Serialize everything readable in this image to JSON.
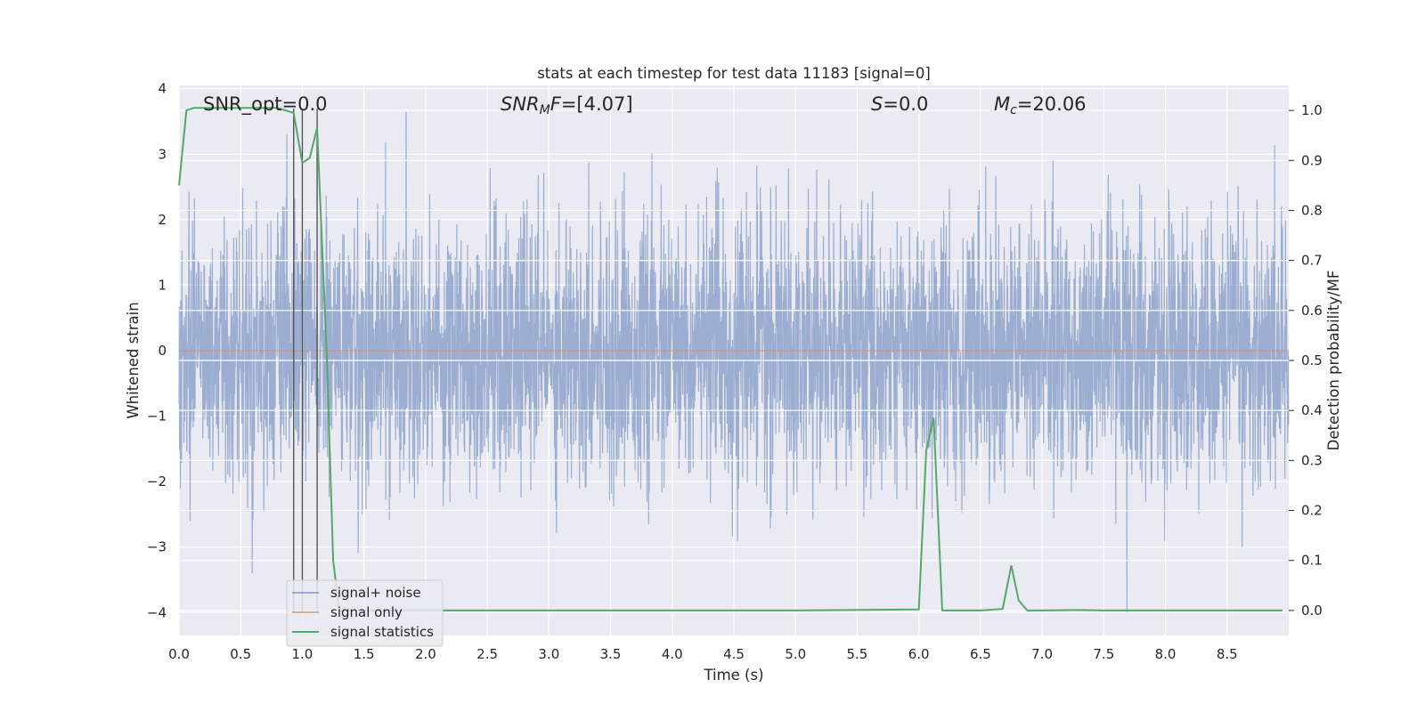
{
  "chart_data": {
    "type": "line",
    "title": "stats at each timestep for test data 11183 [signal=0]",
    "xlabel": "Time (s)",
    "ylabel": "Whitened strain",
    "ylabel_right": "Detection probability/MF",
    "xlim": [
      0.0,
      9.0
    ],
    "ylim": [
      -4.35,
      4.05
    ],
    "ylim_right": [
      -0.05,
      1.05
    ],
    "x_ticks": [
      "0.0",
      "0.5",
      "1.0",
      "1.5",
      "2.0",
      "2.5",
      "3.0",
      "3.5",
      "4.0",
      "4.5",
      "5.0",
      "5.5",
      "6.0",
      "6.5",
      "7.0",
      "7.5",
      "8.0",
      "8.5"
    ],
    "y_ticks": [
      "4",
      "3",
      "2",
      "1",
      "0",
      "−1",
      "−2",
      "−3",
      "−4"
    ],
    "y_right_ticks": [
      "1.0",
      "0.9",
      "0.8",
      "0.7",
      "0.6",
      "0.5",
      "0.4",
      "0.3",
      "0.2",
      "0.1",
      "0.0"
    ],
    "grid": true,
    "legend_placement": "lower-left",
    "annotations": {
      "snr_opt": "SNR_opt=0.0",
      "snr_mf_italic": "SNR",
      "snr_mf_sub": "M",
      "snr_mf_italic2": "F",
      "snr_mf_value": "=[4.07]",
      "s_italic": "S",
      "s_value": "=0.0",
      "mc_italic": "M",
      "mc_sub": "c",
      "mc_value": "=20.06"
    },
    "vlines_x": [
      0.93,
      1.0,
      1.12
    ],
    "series": [
      {
        "name": "signal+ noise",
        "color": "#4c72b0",
        "kind": "noise",
        "t_start": 0.0,
        "t_end": 9.0,
        "samples": 4096,
        "envelope_std": 1.0,
        "min": -4.0,
        "max": 3.65
      },
      {
        "name": "signal only",
        "color": "#dd8452",
        "kind": "line",
        "x": [
          0.0,
          9.0
        ],
        "y": [
          0.0,
          0.0
        ]
      },
      {
        "name": "signal statistics",
        "color": "#55a868",
        "kind": "line",
        "axis": "right",
        "x": [
          0.0,
          0.06,
          0.12,
          0.25,
          0.4,
          0.6,
          0.8,
          0.93,
          1.0,
          1.06,
          1.12,
          1.2,
          1.25,
          1.3,
          2.0,
          3.0,
          4.0,
          5.0,
          6.0,
          6.06,
          6.12,
          6.19,
          6.3,
          6.5,
          6.68,
          6.75,
          6.81,
          6.88,
          7.0,
          7.3,
          7.5,
          8.0,
          8.5,
          8.95
        ],
        "y": [
          0.85,
          1.0,
          1.005,
          1.005,
          1.005,
          1.005,
          1.005,
          0.995,
          0.895,
          0.905,
          0.965,
          0.5,
          0.1,
          0.0,
          0.0,
          0.0,
          0.0,
          0.0,
          0.002,
          0.32,
          0.385,
          0.0,
          0.0,
          0.0,
          0.003,
          0.09,
          0.02,
          0.0,
          0.0,
          0.001,
          0.0,
          0.0,
          0.0,
          0.0
        ]
      }
    ]
  }
}
